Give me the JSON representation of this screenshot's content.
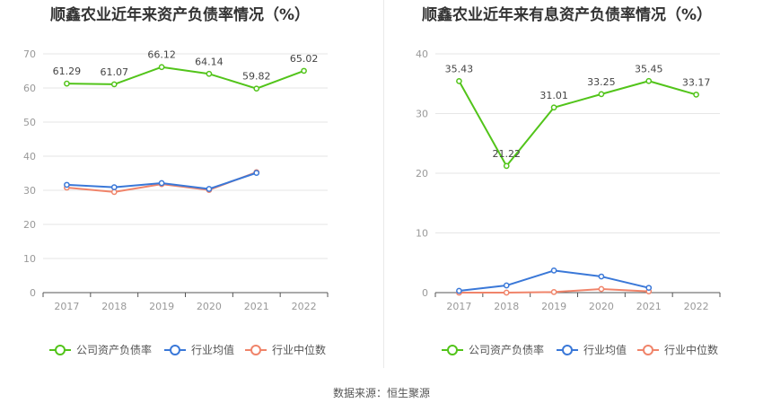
{
  "footer": {
    "source": "数据来源：恒生聚源"
  },
  "colors": {
    "company": "#52c41a",
    "avg": "#3a78d8",
    "median": "#f0846a"
  },
  "legend": [
    "公司资产负债率",
    "行业均值",
    "行业中位数"
  ],
  "chart_data": [
    {
      "type": "line",
      "title": "顺鑫农业近年来资产负债率情况（%）",
      "categories": [
        "2017",
        "2018",
        "2019",
        "2020",
        "2021",
        "2022"
      ],
      "ylim": [
        0,
        70
      ],
      "yticks": [
        0,
        10,
        20,
        30,
        40,
        50,
        60,
        70
      ],
      "grid": true,
      "legend_position": "bottom",
      "series": [
        {
          "name": "公司资产负债率",
          "values": [
            61.29,
            61.07,
            66.12,
            64.14,
            59.82,
            65.02
          ],
          "labels": [
            "61.29",
            "61.07",
            "66.12",
            "64.14",
            "59.82",
            "65.02"
          ]
        },
        {
          "name": "行业均值",
          "values": [
            31.6,
            30.9,
            32.1,
            30.4,
            35.1,
            null
          ]
        },
        {
          "name": "行业中位数",
          "values": [
            30.8,
            29.5,
            31.8,
            30.1,
            35.3,
            null
          ]
        }
      ]
    },
    {
      "type": "line",
      "title": "顺鑫农业近年来有息资产负债率情况（%）",
      "categories": [
        "2017",
        "2018",
        "2019",
        "2020",
        "2021",
        "2022"
      ],
      "ylim": [
        0,
        40
      ],
      "yticks": [
        0,
        10,
        20,
        30,
        40
      ],
      "grid": true,
      "legend_position": "bottom",
      "series": [
        {
          "name": "公司资产负债率",
          "values": [
            35.43,
            21.22,
            31.01,
            33.25,
            35.45,
            33.17
          ],
          "labels": [
            "35.43",
            "21.22",
            "31.01",
            "33.25",
            "35.45",
            "33.17"
          ]
        },
        {
          "name": "行业均值",
          "values": [
            0.3,
            1.2,
            3.7,
            2.7,
            0.8,
            null
          ]
        },
        {
          "name": "行业中位数",
          "values": [
            0.0,
            0.0,
            0.1,
            0.6,
            0.2,
            null
          ]
        }
      ]
    }
  ]
}
